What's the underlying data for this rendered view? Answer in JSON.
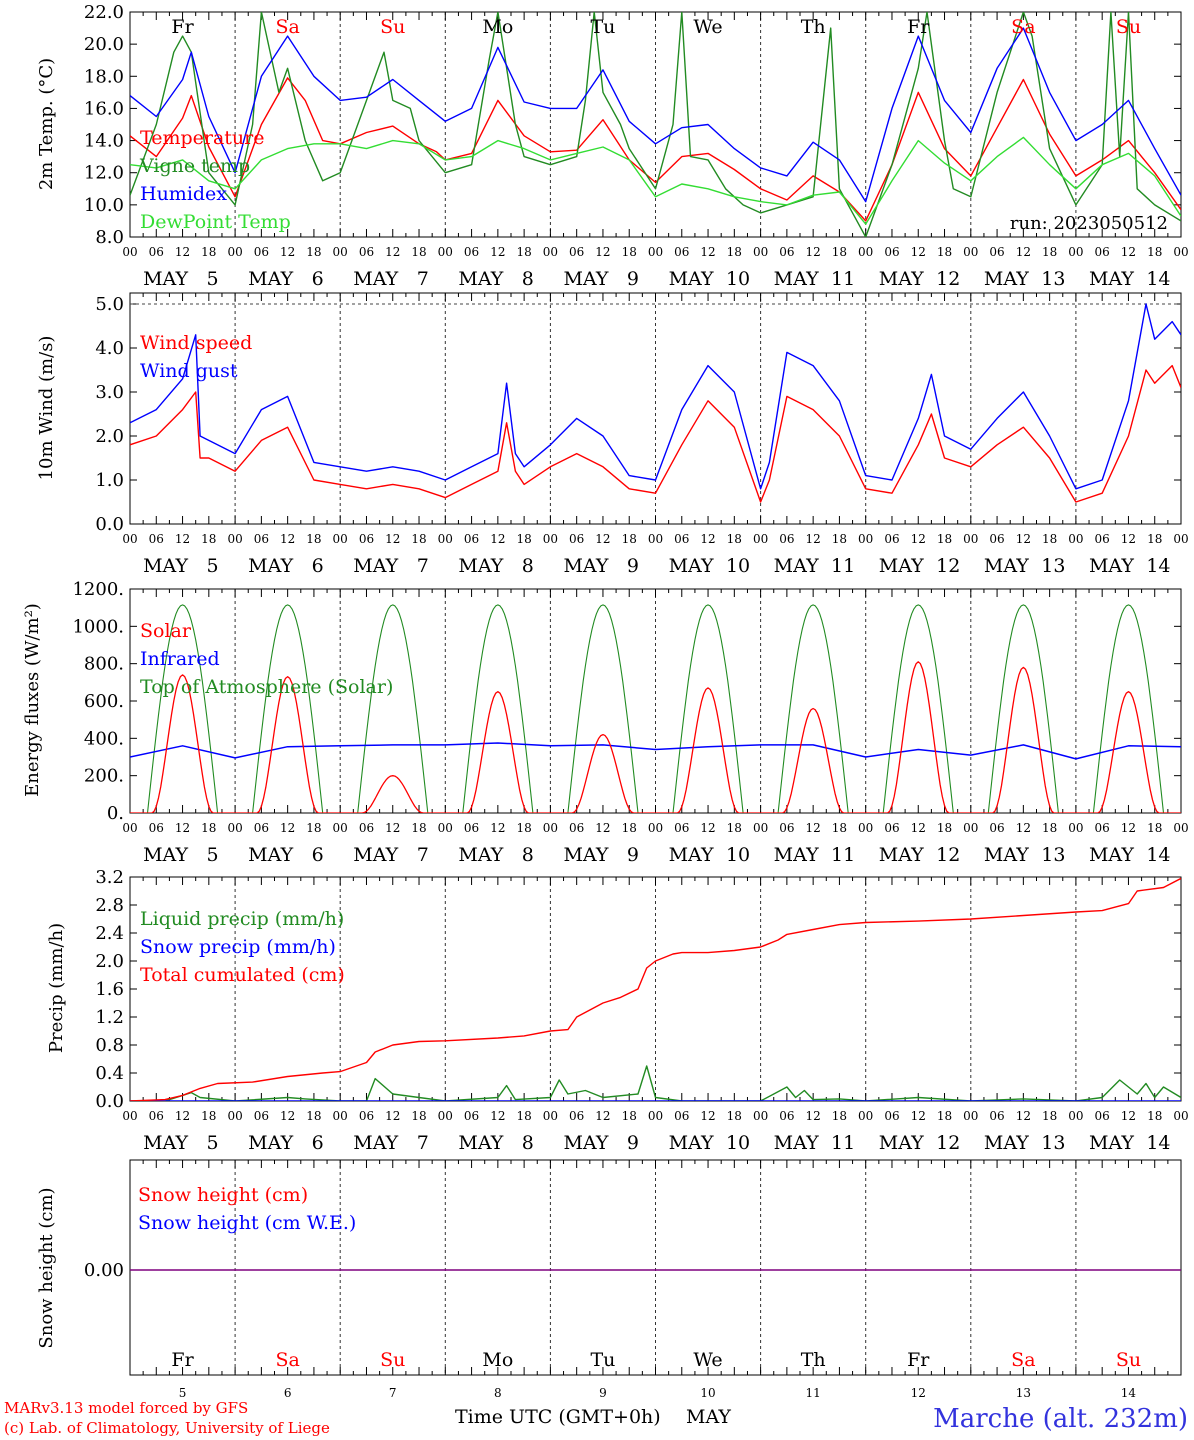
{
  "colors": {
    "red": "#ff0000",
    "green": "#228b22",
    "blue": "#0000ff",
    "lightgreen": "#33dd33",
    "purple": "#7f007f",
    "black": "#000000",
    "caption_blue": "#3333dd"
  },
  "days": [
    {
      "date": "5",
      "month": "MAY",
      "dow": "Fr",
      "weekend": false
    },
    {
      "date": "6",
      "month": "MAY",
      "dow": "Sa",
      "weekend": true
    },
    {
      "date": "7",
      "month": "MAY",
      "dow": "Su",
      "weekend": true
    },
    {
      "date": "8",
      "month": "MAY",
      "dow": "Mo",
      "weekend": false
    },
    {
      "date": "9",
      "month": "MAY",
      "dow": "Tu",
      "weekend": false
    },
    {
      "date": "10",
      "month": "MAY",
      "dow": "We",
      "weekend": false
    },
    {
      "date": "11",
      "month": "MAY",
      "dow": "Th",
      "weekend": false
    },
    {
      "date": "12",
      "month": "MAY",
      "dow": "Fr",
      "weekend": false
    },
    {
      "date": "13",
      "month": "MAY",
      "dow": "Sa",
      "weekend": true
    },
    {
      "date": "14",
      "month": "MAY",
      "dow": "Su",
      "weekend": true
    }
  ],
  "hour_ticks": [
    "00",
    "06",
    "12",
    "18"
  ],
  "final_hour_tick": "00",
  "footer": {
    "model": "MARv3.13 model forced by GFS",
    "copyright": "(c) Lab. of Climatology, University of Liege",
    "axis_title": "Time UTC (GMT+0h)",
    "axis_month": "MAY",
    "station": "Marche (alt. 232m)"
  },
  "chart_data": [
    {
      "type": "line",
      "ylabel": "2m Temp. (°C)",
      "ylim": [
        8.0,
        22.0
      ],
      "yticks": [
        "8.0",
        "10.0",
        "12.0",
        "14.0",
        "16.0",
        "18.0",
        "20.0",
        "22.0"
      ],
      "annotation": "run: 2023050512",
      "x_unit": "hours since 2023-05-05 00 UTC",
      "series": [
        {
          "name": "Temperature",
          "color": "red",
          "x": [
            0,
            6,
            12,
            14,
            18,
            24,
            30,
            36,
            40,
            44,
            48,
            54,
            60,
            66,
            70,
            72,
            78,
            84,
            90,
            96,
            102,
            108,
            114,
            120,
            126,
            132,
            138,
            144,
            150,
            156,
            162,
            168,
            174,
            180,
            186,
            192,
            198,
            204,
            210,
            216,
            222,
            228,
            234,
            240
          ],
          "values": [
            14.3,
            13.0,
            15.4,
            16.8,
            13.6,
            10.5,
            15.0,
            17.9,
            16.5,
            14.0,
            13.8,
            14.5,
            14.9,
            13.8,
            13.3,
            12.8,
            13.2,
            16.5,
            14.3,
            13.3,
            13.4,
            15.3,
            12.8,
            11.4,
            13.0,
            13.2,
            12.2,
            11.0,
            10.3,
            11.8,
            10.8,
            9.0,
            12.5,
            17.0,
            13.5,
            11.8,
            14.8,
            17.8,
            14.4,
            11.8,
            12.8,
            14.0,
            12.0,
            9.7
          ]
        },
        {
          "name": "Vigne temp",
          "color": "green",
          "x": [
            0,
            6,
            10,
            12,
            14,
            18,
            24,
            28,
            30,
            34,
            36,
            40,
            44,
            48,
            54,
            58,
            60,
            64,
            66,
            72,
            78,
            82,
            84,
            88,
            90,
            96,
            102,
            104,
            106,
            108,
            112,
            114,
            120,
            124,
            126,
            128,
            132,
            136,
            140,
            144,
            150,
            156,
            160,
            162,
            164,
            168,
            174,
            180,
            182,
            186,
            188,
            192,
            198,
            204,
            206,
            210,
            216,
            222,
            224,
            226,
            228,
            230,
            234,
            240
          ],
          "values": [
            10.6,
            15.0,
            19.5,
            20.5,
            19.5,
            12.0,
            10.0,
            15.0,
            22.0,
            17.0,
            18.5,
            14.0,
            11.5,
            12.0,
            16.5,
            19.5,
            16.5,
            16.0,
            14.0,
            12.0,
            12.5,
            19.0,
            22.0,
            15.0,
            13.0,
            12.5,
            13.0,
            16.5,
            22.0,
            17.0,
            15.0,
            13.5,
            11.0,
            15.0,
            22.0,
            13.0,
            12.8,
            11.0,
            10.0,
            9.5,
            10.0,
            10.5,
            21.0,
            11.0,
            10.0,
            8.0,
            12.5,
            18.5,
            22.0,
            14.0,
            11.0,
            10.5,
            17.0,
            22.0,
            20.5,
            13.5,
            10.0,
            12.5,
            22.0,
            13.0,
            22.0,
            11.0,
            10.0,
            9.0
          ]
        },
        {
          "name": "Humidex",
          "color": "blue",
          "x": [
            0,
            6,
            12,
            14,
            18,
            24,
            30,
            36,
            42,
            48,
            54,
            60,
            66,
            72,
            78,
            84,
            90,
            96,
            102,
            108,
            114,
            120,
            126,
            132,
            138,
            144,
            150,
            156,
            162,
            168,
            174,
            180,
            186,
            192,
            198,
            204,
            210,
            216,
            222,
            228,
            234,
            240
          ],
          "values": [
            16.8,
            15.5,
            17.8,
            19.5,
            15.5,
            12.0,
            18.0,
            20.5,
            18.0,
            16.5,
            16.7,
            17.8,
            16.5,
            15.2,
            16.0,
            19.8,
            16.4,
            16.0,
            16.0,
            18.4,
            15.2,
            13.8,
            14.8,
            15.0,
            13.5,
            12.3,
            11.8,
            13.9,
            12.8,
            10.2,
            16.0,
            20.5,
            16.5,
            14.5,
            18.5,
            21.0,
            17.0,
            14.0,
            15.0,
            16.5,
            13.5,
            10.6
          ]
        },
        {
          "name": "DewPoint Temp",
          "color": "lightgreen",
          "x": [
            0,
            6,
            12,
            18,
            24,
            30,
            36,
            42,
            48,
            54,
            60,
            66,
            72,
            78,
            84,
            90,
            96,
            102,
            108,
            114,
            120,
            126,
            132,
            138,
            144,
            150,
            156,
            162,
            168,
            174,
            180,
            186,
            192,
            198,
            204,
            210,
            216,
            222,
            228,
            234,
            240
          ],
          "values": [
            12.5,
            12.3,
            12.8,
            11.5,
            11.0,
            12.8,
            13.5,
            13.8,
            13.8,
            13.5,
            14.0,
            13.8,
            12.8,
            13.0,
            14.0,
            13.5,
            12.8,
            13.2,
            13.6,
            12.8,
            10.5,
            11.3,
            11.0,
            10.5,
            10.2,
            10.0,
            10.6,
            10.8,
            8.8,
            11.5,
            14.0,
            12.6,
            11.5,
            13.0,
            14.2,
            12.5,
            11.0,
            12.5,
            13.2,
            11.8,
            9.3
          ]
        }
      ]
    },
    {
      "type": "line",
      "ylabel": "10m Wind (m/s)",
      "ylim": [
        0.0,
        5.25
      ],
      "yticks": [
        "0.0",
        "1.0",
        "2.0",
        "3.0",
        "4.0",
        "5.0"
      ],
      "x_unit": "hours since 2023-05-05 00 UTC",
      "series": [
        {
          "name": "Wind speed",
          "color": "red",
          "x": [
            0,
            6,
            12,
            15,
            16,
            18,
            24,
            30,
            36,
            42,
            48,
            54,
            60,
            66,
            72,
            78,
            84,
            86,
            88,
            90,
            96,
            102,
            108,
            114,
            120,
            126,
            132,
            138,
            144,
            146,
            150,
            156,
            162,
            168,
            174,
            180,
            183,
            186,
            192,
            198,
            204,
            210,
            216,
            222,
            228,
            232,
            234,
            238,
            240
          ],
          "values": [
            1.8,
            2.0,
            2.6,
            3.0,
            1.5,
            1.5,
            1.2,
            1.9,
            2.2,
            1.0,
            0.9,
            0.8,
            0.9,
            0.8,
            0.6,
            0.9,
            1.2,
            2.3,
            1.2,
            0.9,
            1.3,
            1.6,
            1.3,
            0.8,
            0.7,
            1.8,
            2.8,
            2.2,
            0.5,
            1.0,
            2.9,
            2.6,
            2.0,
            0.8,
            0.7,
            1.8,
            2.5,
            1.5,
            1.3,
            1.8,
            2.2,
            1.5,
            0.5,
            0.7,
            2.0,
            3.5,
            3.2,
            3.6,
            3.1
          ]
        },
        {
          "name": "Wind gust",
          "color": "blue",
          "x": [
            0,
            6,
            12,
            15,
            16,
            18,
            24,
            30,
            36,
            42,
            48,
            54,
            60,
            66,
            72,
            78,
            84,
            86,
            88,
            90,
            96,
            102,
            108,
            114,
            120,
            126,
            132,
            138,
            144,
            146,
            150,
            156,
            162,
            168,
            174,
            180,
            183,
            186,
            192,
            198,
            204,
            210,
            216,
            222,
            228,
            232,
            234,
            238,
            240
          ],
          "values": [
            2.3,
            2.6,
            3.3,
            4.3,
            2.0,
            1.9,
            1.6,
            2.6,
            2.9,
            1.4,
            1.3,
            1.2,
            1.3,
            1.2,
            1.0,
            1.3,
            1.6,
            3.2,
            1.6,
            1.3,
            1.8,
            2.4,
            2.0,
            1.1,
            1.0,
            2.6,
            3.6,
            3.0,
            0.8,
            1.4,
            3.9,
            3.6,
            2.8,
            1.1,
            1.0,
            2.4,
            3.4,
            2.0,
            1.7,
            2.4,
            3.0,
            2.0,
            0.8,
            1.0,
            2.8,
            5.0,
            4.2,
            4.6,
            4.3
          ]
        }
      ]
    },
    {
      "type": "line",
      "ylabel": "Energy fluxes (W/m²)",
      "ylim": [
        0,
        1200
      ],
      "yticks": [
        "0.",
        "200.",
        "400.",
        "600.",
        "800.",
        "1000.",
        "1200."
      ],
      "x_unit": "hours since 2023-05-05 00 UTC",
      "solar_peaks": [
        740,
        730,
        200,
        650,
        420,
        670,
        560,
        810,
        780,
        650
      ],
      "toa_peak": 1115,
      "series": [
        {
          "name": "Solar",
          "color": "red"
        },
        {
          "name": "Infrared",
          "color": "blue",
          "x": [
            0,
            12,
            24,
            36,
            48,
            60,
            72,
            84,
            96,
            108,
            120,
            132,
            144,
            156,
            168,
            180,
            192,
            204,
            216,
            228,
            240
          ],
          "values": [
            300,
            360,
            295,
            355,
            360,
            365,
            365,
            375,
            360,
            365,
            340,
            355,
            365,
            365,
            300,
            340,
            310,
            365,
            290,
            360,
            355
          ]
        },
        {
          "name": "Top of Atmosphere (Solar)",
          "color": "green"
        }
      ]
    },
    {
      "type": "line",
      "ylabel": "Precip (mm/h)",
      "ylim": [
        0.0,
        3.2
      ],
      "yticks": [
        "0.0",
        "0.4",
        "0.8",
        "1.2",
        "1.6",
        "2.0",
        "2.4",
        "2.8",
        "3.2"
      ],
      "x_unit": "hours since 2023-05-05 00 UTC",
      "series": [
        {
          "name": "Liquid precip (mm/h)",
          "color": "green",
          "x": [
            0,
            8,
            12,
            14,
            16,
            24,
            36,
            40,
            48,
            54,
            56,
            60,
            66,
            72,
            84,
            86,
            88,
            96,
            98,
            100,
            104,
            108,
            116,
            118,
            120,
            126,
            138,
            144,
            150,
            152,
            154,
            156,
            162,
            168,
            180,
            192,
            204,
            216,
            222,
            226,
            230,
            232,
            234,
            236,
            240
          ],
          "values": [
            0,
            0,
            0.08,
            0.12,
            0.05,
            0,
            0.05,
            0.03,
            0,
            0,
            0.32,
            0.1,
            0.05,
            0,
            0.05,
            0.22,
            0.02,
            0.05,
            0.3,
            0.1,
            0.15,
            0.05,
            0.1,
            0.5,
            0.05,
            0,
            0,
            0,
            0.2,
            0.05,
            0.15,
            0.02,
            0.03,
            0,
            0.05,
            0,
            0.03,
            0,
            0.05,
            0.3,
            0.1,
            0.25,
            0.05,
            0.2,
            0.05
          ]
        },
        {
          "name": "Snow precip (mm/h)",
          "color": "blue",
          "x": [
            0,
            240
          ],
          "values": [
            0,
            0
          ]
        },
        {
          "name": "Total cumulated (cm)",
          "color": "red",
          "x": [
            0,
            8,
            12,
            16,
            20,
            28,
            36,
            44,
            48,
            54,
            56,
            60,
            66,
            72,
            84,
            90,
            96,
            100,
            102,
            108,
            112,
            116,
            118,
            120,
            124,
            126,
            132,
            138,
            144,
            148,
            150,
            156,
            162,
            168,
            180,
            192,
            204,
            216,
            222,
            228,
            230,
            236,
            240
          ],
          "values": [
            0,
            0.02,
            0.08,
            0.18,
            0.25,
            0.27,
            0.35,
            0.4,
            0.42,
            0.55,
            0.7,
            0.8,
            0.85,
            0.86,
            0.9,
            0.93,
            1.0,
            1.02,
            1.2,
            1.4,
            1.48,
            1.6,
            1.9,
            2.0,
            2.1,
            2.12,
            2.12,
            2.15,
            2.2,
            2.3,
            2.38,
            2.45,
            2.52,
            2.55,
            2.57,
            2.6,
            2.65,
            2.7,
            2.72,
            2.82,
            3.0,
            3.05,
            3.18
          ]
        }
      ]
    },
    {
      "type": "line",
      "ylabel": "Snow height (cm)",
      "yticks": [
        "0.00"
      ],
      "x_unit": "hours since 2023-05-05 00 UTC",
      "series": [
        {
          "name": "Snow height (cm)",
          "color": "red",
          "x": [
            0,
            240
          ],
          "values": [
            0,
            0
          ]
        },
        {
          "name": "Snow height (cm W.E.)",
          "color": "blue",
          "x": [
            0,
            240
          ],
          "values": [
            0,
            0
          ]
        }
      ]
    }
  ]
}
